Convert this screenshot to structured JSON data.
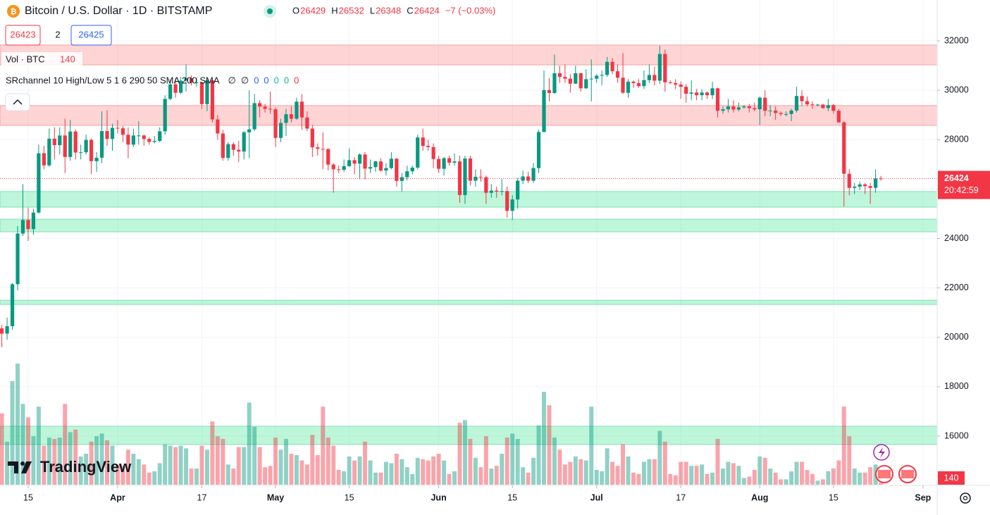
{
  "chart_data": {
    "type": "candlestick",
    "title": "Bitcoin / U.S. Dollar · 1D · BITSTAMP",
    "ohlc_legend": [
      {
        "key": "O",
        "value": 26429
      },
      {
        "key": "H",
        "value": 26532
      },
      {
        "key": "L",
        "value": 26348
      },
      {
        "key": "C",
        "value": 26424
      }
    ],
    "change_label": "−7 (−0.03%)",
    "bid": 26423,
    "spread": 2,
    "ask": 26425,
    "volume_legend": {
      "name": "Vol · BTC",
      "value": 140
    },
    "indicator_legend": {
      "name": "SRchannel 10 High/Low 5 1 6 290 50 SMA 200 SMA",
      "values": [
        "∅",
        "∅",
        "0",
        "0",
        "0",
        "0",
        "0"
      ],
      "colors": [
        "#131722",
        "#131722",
        "#2962ff",
        "#2962ff",
        "#00bcd4",
        "#22ab94",
        "#f23645"
      ]
    },
    "logo": "TradingView",
    "last_price": 26424,
    "countdown": "20:42:59",
    "last_volume": 140,
    "up_color": "#089981",
    "down_color": "#f23645",
    "volume_up_color": "rgba(8,153,129,0.45)",
    "volume_down_color": "rgba(242,54,69,0.45)",
    "zones": [
      {
        "low": 31030,
        "high": 31830,
        "color": "rgba(255,120,120,0.32)",
        "border": "#f7a1a1"
      },
      {
        "low": 28580,
        "high": 29380,
        "color": "rgba(255,120,120,0.32)",
        "border": "#f7a1a1"
      },
      {
        "low": 25270,
        "high": 25900,
        "color": "rgba(70,230,150,0.35)",
        "border": "#7fe0b5"
      },
      {
        "low": 24270,
        "high": 24780,
        "color": "rgba(70,230,150,0.35)",
        "border": "#7fe0b5"
      },
      {
        "low": 21330,
        "high": 21500,
        "color": "rgba(70,230,150,0.35)",
        "border": "#7fe0b5"
      },
      {
        "low": 15660,
        "high": 16400,
        "color": "rgba(70,230,150,0.35)",
        "border": "#7fe0b5"
      }
    ],
    "ylim": [
      13975,
      33655
    ],
    "yticks": [
      16000,
      18000,
      20000,
      22000,
      24000,
      26000,
      28000,
      30000,
      32000
    ],
    "xlim": [
      -0.35,
      177.7
    ],
    "xticks": [
      {
        "value": 5,
        "label": "15"
      },
      {
        "value": 22,
        "label": "Apr"
      },
      {
        "value": 38,
        "label": "17"
      },
      {
        "value": 52,
        "label": "May"
      },
      {
        "value": 66,
        "label": "15"
      },
      {
        "value": 83,
        "label": "Jun"
      },
      {
        "value": 97,
        "label": "15"
      },
      {
        "value": 113,
        "label": "Jul"
      },
      {
        "value": 129,
        "label": "17"
      },
      {
        "value": 144,
        "label": "Aug"
      },
      {
        "value": 158,
        "label": "15"
      },
      {
        "value": 175,
        "label": "Sep"
      }
    ],
    "grid": true,
    "candles": [
      [
        20360,
        20500,
        19600,
        20150
      ],
      [
        20150,
        20800,
        19900,
        20450
      ],
      [
        20450,
        22200,
        20300,
        22150
      ],
      [
        22150,
        24500,
        21900,
        24200
      ],
      [
        24200,
        26200,
        24100,
        24750
      ],
      [
        24750,
        25250,
        23900,
        24380
      ],
      [
        24380,
        25200,
        24150,
        25050
      ],
      [
        25050,
        27800,
        25000,
        27450
      ],
      [
        27450,
        27750,
        26800,
        26960
      ],
      [
        26960,
        28450,
        26900,
        28040
      ],
      [
        28040,
        28500,
        27200,
        27780
      ],
      [
        27780,
        28500,
        27400,
        28170
      ],
      [
        28170,
        28850,
        26650,
        27300
      ],
      [
        27300,
        28800,
        27150,
        28330
      ],
      [
        28330,
        28420,
        27200,
        27480
      ],
      [
        27480,
        27800,
        27200,
        27490
      ],
      [
        27490,
        28200,
        27400,
        27990
      ],
      [
        27990,
        28050,
        26600,
        27130
      ],
      [
        27130,
        27500,
        26700,
        27270
      ],
      [
        27270,
        29150,
        27050,
        28350
      ],
      [
        28350,
        29200,
        27750,
        28030
      ],
      [
        28030,
        28650,
        27550,
        28480
      ],
      [
        28480,
        28800,
        28250,
        28460
      ],
      [
        28460,
        28550,
        27900,
        28200
      ],
      [
        28200,
        28500,
        27250,
        27800
      ],
      [
        27800,
        28450,
        27700,
        28170
      ],
      [
        28170,
        28750,
        27800,
        28170
      ],
      [
        28170,
        28200,
        27750,
        28030
      ],
      [
        28030,
        28100,
        27800,
        27910
      ],
      [
        27910,
        28150,
        27850,
        27950
      ],
      [
        27950,
        28500,
        27900,
        28340
      ],
      [
        28340,
        29800,
        28200,
        29650
      ],
      [
        29650,
        30450,
        29600,
        30240
      ],
      [
        30240,
        30500,
        29700,
        29900
      ],
      [
        29900,
        30550,
        29850,
        30390
      ],
      [
        30390,
        31050,
        29950,
        30490
      ],
      [
        30490,
        30600,
        30200,
        30320
      ],
      [
        30320,
        30500,
        30150,
        30320
      ],
      [
        30320,
        30350,
        29250,
        29440
      ],
      [
        29440,
        30450,
        29150,
        30400
      ],
      [
        30400,
        30450,
        28700,
        28820
      ],
      [
        28820,
        29000,
        28000,
        28250
      ],
      [
        28250,
        28400,
        27150,
        27260
      ],
      [
        27260,
        27900,
        27150,
        27820
      ],
      [
        27820,
        27900,
        27350,
        27590
      ],
      [
        27590,
        27950,
        27100,
        27520
      ],
      [
        27520,
        28350,
        27200,
        28300
      ],
      [
        28300,
        30000,
        27250,
        28420
      ],
      [
        28420,
        29850,
        28350,
        29480
      ],
      [
        29480,
        29600,
        28900,
        29340
      ],
      [
        29340,
        29450,
        29100,
        29250
      ],
      [
        29250,
        29950,
        29050,
        29230
      ],
      [
        29230,
        29300,
        27700,
        28070
      ],
      [
        28070,
        28850,
        27900,
        28680
      ],
      [
        28680,
        29250,
        28150,
        29030
      ],
      [
        29030,
        29350,
        28700,
        28850
      ],
      [
        28850,
        29700,
        28800,
        29540
      ],
      [
        29540,
        29850,
        28400,
        28900
      ],
      [
        28900,
        29150,
        28350,
        28450
      ],
      [
        28450,
        28600,
        27300,
        27690
      ],
      [
        27690,
        27850,
        27350,
        27630
      ],
      [
        27630,
        28300,
        26800,
        27620
      ],
      [
        27620,
        27650,
        26750,
        26990
      ],
      [
        26990,
        27050,
        25850,
        26800
      ],
      [
        26800,
        26950,
        26650,
        26780
      ],
      [
        26780,
        27200,
        26700,
        26930
      ],
      [
        26930,
        27650,
        26900,
        27170
      ],
      [
        27170,
        27300,
        26600,
        27030
      ],
      [
        27030,
        27450,
        26400,
        27400
      ],
      [
        27400,
        27500,
        26400,
        26830
      ],
      [
        26830,
        27200,
        26650,
        26890
      ],
      [
        26890,
        27150,
        26700,
        27120
      ],
      [
        27120,
        27250,
        26700,
        26750
      ],
      [
        26750,
        27050,
        26550,
        26850
      ],
      [
        26850,
        27500,
        26800,
        27230
      ],
      [
        27230,
        27250,
        26100,
        26330
      ],
      [
        26330,
        26650,
        25900,
        26480
      ],
      [
        26480,
        26950,
        26350,
        26720
      ],
      [
        26720,
        26950,
        26600,
        26870
      ],
      [
        26870,
        28200,
        26800,
        28090
      ],
      [
        28090,
        28450,
        27550,
        27750
      ],
      [
        27750,
        28000,
        27550,
        27700
      ],
      [
        27700,
        27850,
        26850,
        27220
      ],
      [
        27220,
        27350,
        26650,
        26820
      ],
      [
        26820,
        27300,
        26550,
        27250
      ],
      [
        27250,
        27350,
        26950,
        27070
      ],
      [
        27070,
        27450,
        26950,
        27120
      ],
      [
        27120,
        27350,
        25450,
        25760
      ],
      [
        25760,
        27350,
        25400,
        27240
      ],
      [
        27240,
        27350,
        26150,
        26340
      ],
      [
        26340,
        26800,
        26100,
        26500
      ],
      [
        26500,
        26800,
        26300,
        26480
      ],
      [
        26480,
        26550,
        25400,
        25850
      ],
      [
        25850,
        26200,
        25650,
        25940
      ],
      [
        25940,
        26100,
        25650,
        25900
      ],
      [
        25900,
        26400,
        25750,
        25920
      ],
      [
        25920,
        26100,
        24850,
        25120
      ],
      [
        25120,
        25750,
        24750,
        25580
      ],
      [
        25580,
        26450,
        25200,
        26340
      ],
      [
        26340,
        26750,
        26200,
        26510
      ],
      [
        26510,
        26700,
        26250,
        26340
      ],
      [
        26340,
        27050,
        26250,
        26850
      ],
      [
        26850,
        28400,
        26650,
        28310
      ],
      [
        28310,
        30800,
        28300,
        30010
      ],
      [
        30010,
        30500,
        29550,
        29890
      ],
      [
        29890,
        31450,
        29850,
        30690
      ],
      [
        30690,
        31000,
        30300,
        30540
      ],
      [
        30540,
        31050,
        30300,
        30470
      ],
      [
        30470,
        30650,
        29900,
        30270
      ],
      [
        30270,
        31000,
        30250,
        30690
      ],
      [
        30690,
        30700,
        29950,
        30080
      ],
      [
        30080,
        30850,
        30050,
        30450
      ],
      [
        30450,
        31250,
        29550,
        30470
      ],
      [
        30470,
        30650,
        30300,
        30590
      ],
      [
        30590,
        30800,
        30200,
        30620
      ],
      [
        30620,
        31350,
        30550,
        31150
      ],
      [
        31150,
        31300,
        30650,
        30770
      ],
      [
        30770,
        31050,
        30300,
        30510
      ],
      [
        30510,
        31500,
        29850,
        29900
      ],
      [
        29900,
        30450,
        29700,
        30350
      ],
      [
        30350,
        30400,
        30100,
        30290
      ],
      [
        30290,
        30450,
        30100,
        30170
      ],
      [
        30170,
        30800,
        30050,
        30410
      ],
      [
        30410,
        31050,
        30300,
        30620
      ],
      [
        30620,
        30950,
        30200,
        30390
      ],
      [
        30390,
        31800,
        30250,
        31470
      ],
      [
        31470,
        31650,
        29950,
        30320
      ],
      [
        30320,
        30400,
        30250,
        30290
      ],
      [
        30290,
        30450,
        30050,
        30230
      ],
      [
        30230,
        30350,
        29650,
        30140
      ],
      [
        30140,
        30250,
        29500,
        29860
      ],
      [
        29860,
        30400,
        29600,
        29910
      ],
      [
        29910,
        30050,
        29600,
        29800
      ],
      [
        29800,
        30050,
        29600,
        29910
      ],
      [
        29910,
        29950,
        29650,
        29800
      ],
      [
        29800,
        30350,
        29650,
        30080
      ],
      [
        30080,
        30100,
        28900,
        29170
      ],
      [
        29170,
        29350,
        29050,
        29230
      ],
      [
        29230,
        29650,
        29100,
        29350
      ],
      [
        29350,
        29600,
        29100,
        29220
      ],
      [
        29220,
        29500,
        29150,
        29310
      ],
      [
        29310,
        29400,
        29250,
        29350
      ],
      [
        29350,
        29450,
        29100,
        29280
      ],
      [
        29280,
        29500,
        29150,
        29230
      ],
      [
        29230,
        29750,
        28600,
        29700
      ],
      [
        29700,
        30000,
        28950,
        29170
      ],
      [
        29170,
        29400,
        28950,
        29180
      ],
      [
        29180,
        29350,
        28800,
        29080
      ],
      [
        29080,
        29150,
        28950,
        29040
      ],
      [
        29040,
        29150,
        28950,
        29040
      ],
      [
        29040,
        29250,
        28750,
        29180
      ],
      [
        29180,
        30150,
        29100,
        29770
      ],
      [
        29770,
        30000,
        29350,
        29560
      ],
      [
        29560,
        29750,
        29350,
        29430
      ],
      [
        29430,
        29550,
        29250,
        29400
      ],
      [
        29400,
        29450,
        29350,
        29420
      ],
      [
        29420,
        29450,
        29250,
        29280
      ],
      [
        29280,
        29650,
        29150,
        29400
      ],
      [
        29400,
        29450,
        29050,
        29170
      ],
      [
        29170,
        29250,
        28700,
        28700
      ],
      [
        28700,
        28750,
        25300,
        26620
      ],
      [
        26620,
        26800,
        25750,
        26050
      ],
      [
        26050,
        26250,
        25800,
        26100
      ],
      [
        26100,
        26300,
        25950,
        26190
      ],
      [
        26190,
        26250,
        25800,
        26120
      ],
      [
        26120,
        26250,
        25400,
        26050
      ],
      [
        26050,
        26800,
        25850,
        26430
      ],
      [
        26429,
        26532,
        26348,
        26424
      ]
    ],
    "volumes": [
      5300,
      3200,
      7700,
      9000,
      6000,
      5000,
      3600,
      5800,
      2900,
      3500,
      3400,
      3500,
      6000,
      3900,
      4100,
      2100,
      2300,
      3200,
      3600,
      3800,
      3300,
      2900,
      1500,
      1400,
      2600,
      2300,
      1900,
      1500,
      900,
      1000,
      1600,
      3000,
      2900,
      2800,
      2900,
      2700,
      1200,
      1200,
      2900,
      2600,
      4700,
      3600,
      3400,
      1500,
      1200,
      2800,
      2800,
      6100,
      4300,
      2800,
      1300,
      1400,
      3500,
      2600,
      3400,
      2300,
      2200,
      1800,
      1500,
      3700,
      2200,
      5800,
      3500,
      2900,
      1100,
      1000,
      2100,
      1800,
      2100,
      3200,
      1800,
      900,
      900,
      1700,
      1600,
      2300,
      1900,
      1300,
      800,
      2000,
      1900,
      1800,
      2100,
      2300,
      1800,
      800,
      1000,
      4600,
      4800,
      3400,
      2000,
      1300,
      3600,
      1200,
      1400,
      2300,
      3500,
      3800,
      3400,
      1300,
      900,
      2000,
      4400,
      6900,
      5900,
      3500,
      2600,
      1500,
      1700,
      2100,
      1900,
      1800,
      5800,
      1100,
      1000,
      2700,
      1700,
      1400,
      3000,
      2100,
      900,
      800,
      1700,
      1900,
      1900,
      4000,
      3200,
      800,
      700,
      1700,
      1700,
      1400,
      1400,
      1500,
      800,
      900,
      3400,
      1200,
      1700,
      1600,
      1400,
      500,
      600,
      1100,
      2100,
      2000,
      1200,
      900,
      400,
      400,
      1000,
      1700,
      1700,
      1100,
      800,
      300,
      400,
      1000,
      1200,
      1800,
      5800,
      3600,
      1200,
      900,
      900,
      1300,
      1500,
      140
    ]
  }
}
